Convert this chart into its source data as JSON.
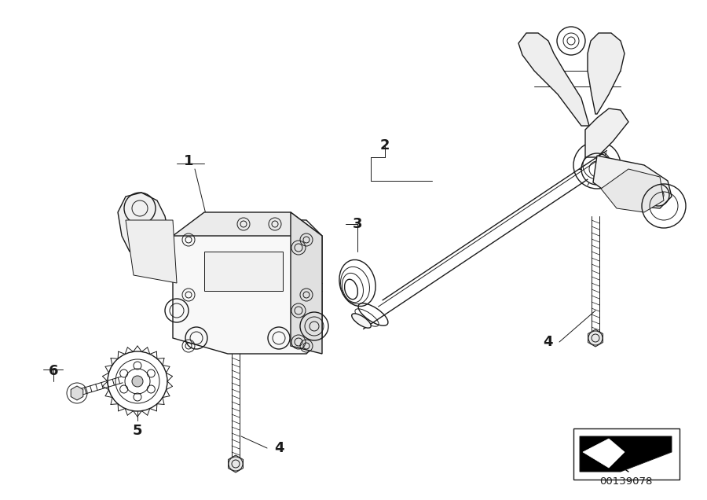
{
  "background_color": "#ffffff",
  "line_color": "#1a1a1a",
  "part_number": "00139078",
  "figsize": [
    9.0,
    6.36
  ],
  "dpi": 100,
  "lw_thin": 0.7,
  "lw_med": 1.0,
  "lw_thick": 1.5
}
